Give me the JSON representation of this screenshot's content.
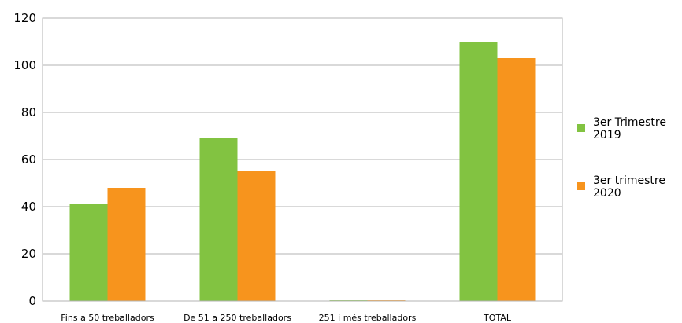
{
  "chart_data": {
    "type": "bar",
    "categories": [
      "Fins a 50 treballadors",
      "De 51 a 250 treballadors",
      "251 i més treballadors",
      "TOTAL"
    ],
    "series": [
      {
        "name": "3er  Trimestre 2019",
        "legend_lines": [
          "3er  Trimestre",
          "2019"
        ],
        "color": "#82c341",
        "values": [
          41,
          69,
          0.3,
          110
        ]
      },
      {
        "name": "3er trimestre 2020",
        "legend_lines": [
          "3er trimestre",
          "2020"
        ],
        "color": "#f7941d",
        "values": [
          48,
          55,
          0.3,
          103
        ]
      }
    ],
    "yticks": [
      0,
      20,
      40,
      60,
      80,
      100,
      120
    ],
    "ylim": [
      0,
      120
    ],
    "grid": true,
    "legend": "right",
    "title": "",
    "xlabel": "",
    "ylabel": ""
  }
}
